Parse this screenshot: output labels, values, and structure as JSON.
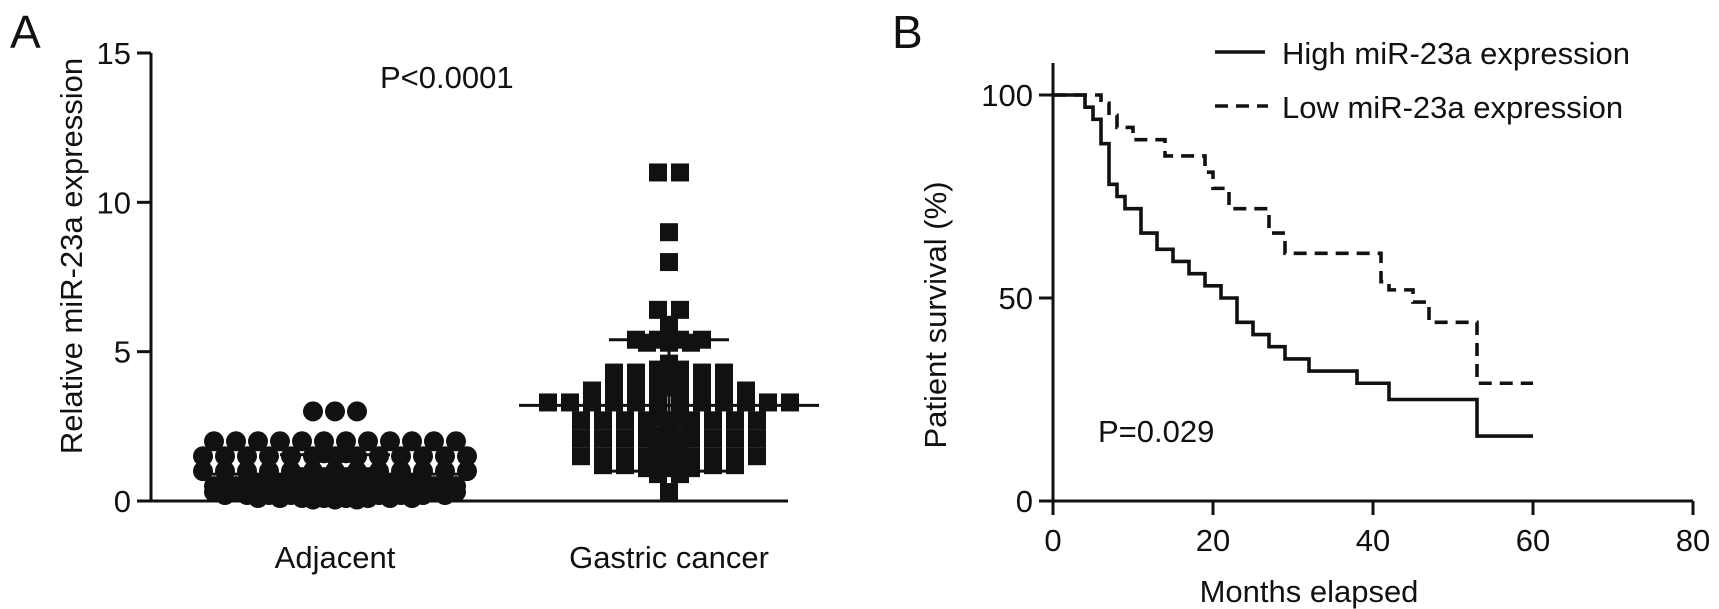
{
  "chart_data": [
    {
      "panel": "A",
      "type": "scatter",
      "ylabel": "Relative miR-23a expression",
      "categories": [
        "Adjacent",
        "Gastric cancer"
      ],
      "ylim": [
        0,
        15
      ],
      "yticks": [
        0,
        5,
        10,
        15
      ],
      "annotation": "P<0.0001",
      "series": [
        {
          "category": "Adjacent",
          "marker": "circle",
          "values": [
            3.0,
            3.0,
            3.0,
            2.0,
            2.0,
            2.0,
            2.0,
            2.0,
            2.0,
            2.0,
            2.0,
            2.0,
            2.0,
            2.0,
            2.0,
            1.6,
            1.6,
            1.5,
            1.5,
            1.5,
            1.5,
            1.5,
            1.5,
            1.5,
            1.5,
            1.5,
            1.5,
            1.5,
            1.5,
            1.5,
            1.0,
            1.0,
            1.0,
            1.0,
            1.0,
            1.0,
            1.0,
            1.0,
            1.0,
            1.0,
            1.0,
            1.0,
            1.0,
            0.8,
            0.8,
            0.8,
            0.8,
            0.7,
            0.7,
            0.7,
            0.7,
            0.6,
            0.6,
            0.6,
            0.6,
            0.6,
            0.6,
            0.6,
            0.6,
            0.5,
            0.5,
            0.5,
            0.5,
            0.5,
            0.5,
            0.5,
            0.5,
            0.5,
            0.5,
            0.5,
            0.5,
            0.4,
            0.4,
            0.4,
            0.4,
            0.4,
            0.4,
            0.4,
            0.4,
            0.4,
            0.4,
            0.4,
            0.3,
            0.3,
            0.3,
            0.3,
            0.3,
            0.3,
            0.3,
            0.3,
            0.3,
            0.3,
            0.3,
            0.3,
            0.2,
            0.2,
            0.2,
            0.2,
            0.2,
            0.2,
            0.2,
            0.2,
            0.2,
            0.2,
            0.2,
            0.1,
            0.1,
            0.1,
            0.1,
            0.1,
            0.1,
            0.1,
            0.1,
            0.05,
            0.05,
            0.05
          ],
          "mean": 0.9,
          "mean_plus_sd": 1.55,
          "mean_minus_sd": 0.25
        },
        {
          "category": "Gastric cancer",
          "marker": "square",
          "values": [
            11.0,
            11.0,
            9.0,
            8.0,
            6.4,
            6.4,
            5.9,
            5.8,
            5.4,
            5.4,
            5.4,
            5.4,
            5.3,
            5.3,
            5.3,
            4.6,
            4.5,
            4.4,
            4.4,
            4.3,
            4.3,
            4.3,
            4.3,
            4.3,
            4.3,
            4.2,
            4.2,
            4.0,
            3.8,
            3.7,
            3.7,
            3.7,
            3.7,
            3.7,
            3.7,
            3.7,
            3.7,
            3.6,
            3.6,
            3.3,
            3.3,
            3.3,
            3.3,
            3.3,
            3.3,
            3.3,
            3.3,
            3.3,
            3.3,
            3.3,
            3.3,
            2.8,
            2.8,
            2.7,
            2.7,
            2.7,
            2.7,
            2.7,
            2.7,
            2.7,
            2.7,
            2.7,
            2.6,
            2.6,
            2.6,
            2.2,
            2.2,
            2.1,
            2.1,
            2.1,
            2.1,
            2.1,
            2.1,
            2.1,
            2.1,
            2.1,
            2.0,
            1.9,
            1.9,
            1.6,
            1.6,
            1.5,
            1.5,
            1.5,
            1.5,
            1.5,
            1.5,
            1.5,
            1.5,
            1.5,
            1.4,
            1.4,
            1.3,
            1.3,
            1.2,
            1.2,
            1.2,
            1.2,
            1.2,
            1.2,
            1.2,
            1.1,
            1.1,
            1.1,
            0.9,
            0.9,
            0.3
          ],
          "mean": 3.2,
          "mean_plus_sd": 5.4,
          "mean_minus_sd": 1.0
        }
      ]
    },
    {
      "panel": "B",
      "type": "line",
      "xlabel": "Months elapsed",
      "ylabel": "Patient survival (%)",
      "xlim": [
        0,
        80
      ],
      "ylim": [
        0,
        100
      ],
      "xticks": [
        0,
        20,
        40,
        60,
        80
      ],
      "yticks": [
        0,
        50,
        100
      ],
      "annotation": "P=0.029",
      "legend_position": "top-right",
      "series": [
        {
          "name": "High miR-23a expression",
          "style": "solid",
          "x": [
            0,
            4,
            5,
            6,
            7,
            8,
            9,
            11,
            13,
            15,
            17,
            19,
            21,
            23,
            25,
            27,
            29,
            32,
            38,
            42,
            53,
            60
          ],
          "y": [
            100,
            97,
            94,
            88,
            78,
            75,
            72,
            66,
            62,
            59,
            56,
            53,
            50,
            44,
            41,
            38,
            35,
            32,
            29,
            25,
            16,
            16
          ]
        },
        {
          "name": "Low miR-23a expression",
          "style": "dashed",
          "x": [
            0,
            6,
            7,
            8,
            10,
            14,
            19,
            20,
            22,
            27,
            29,
            41,
            42,
            45,
            47,
            53,
            60
          ],
          "y": [
            100,
            98,
            95,
            92,
            89,
            85,
            81,
            77,
            72,
            66,
            61,
            54,
            52,
            49,
            44,
            29,
            29
          ]
        }
      ]
    }
  ]
}
